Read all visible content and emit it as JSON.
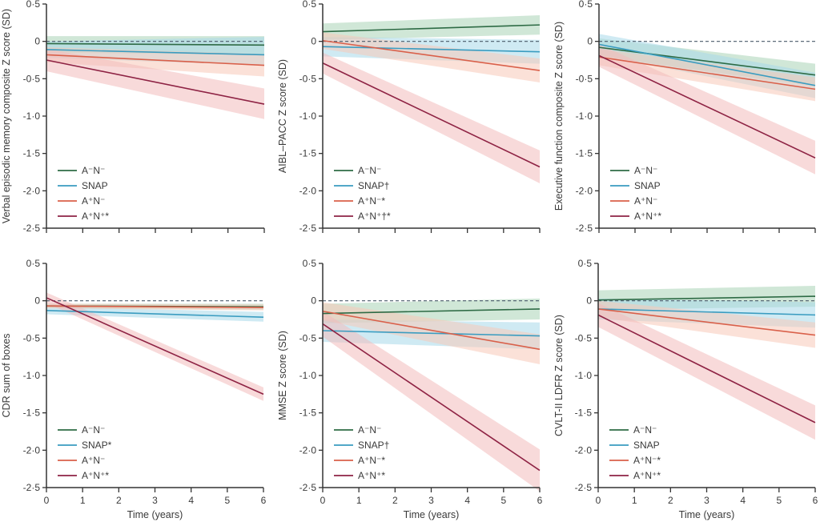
{
  "colors": {
    "AnegNneg": "#2e6b45",
    "SNAP": "#3a9cc0",
    "AposNneg": "#d9604a",
    "AposNpos": "#8e2344",
    "band_AnegNneg": "#a9d3b6",
    "band_SNAP": "#a8d8ea",
    "band_AposNneg": "#f8c9b8",
    "band_AposNpos": "#f3bcbc",
    "axis": "#333333",
    "reference_line": "#4a5a6a"
  },
  "chart_data": [
    {
      "type": "line",
      "title": "",
      "ylabel": "Verbal episodic memory composite Z score (SD)",
      "xlabel": "",
      "xlim": [
        0,
        6
      ],
      "ylim": [
        -2.5,
        0.5
      ],
      "x_ticks": [
        "0",
        "1",
        "2",
        "3",
        "4",
        "5",
        "6"
      ],
      "show_x_tick_labels": false,
      "y_ticks": [
        "0·5",
        "0",
        "-0·5",
        "-1·0",
        "-1·5",
        "-2·0",
        "-2·5"
      ],
      "reference_line": 0,
      "legend_position": "bottom-left",
      "series": [
        {
          "name": "A⁻N⁻",
          "key": "AnegNneg",
          "x": [
            0,
            6
          ],
          "y": [
            -0.03,
            -0.05
          ],
          "ci_lower": [
            -0.15,
            -0.18
          ],
          "ci_upper": [
            0.07,
            0.07
          ]
        },
        {
          "name": "SNAP",
          "key": "SNAP",
          "x": [
            0,
            6
          ],
          "y": [
            -0.11,
            -0.18
          ],
          "ci_lower": [
            -0.22,
            -0.32
          ],
          "ci_upper": [
            0.0,
            0.06
          ]
        },
        {
          "name": "A⁺N⁻",
          "key": "AposNneg",
          "x": [
            0,
            6
          ],
          "y": [
            -0.18,
            -0.32
          ],
          "ci_lower": [
            -0.28,
            -0.47
          ],
          "ci_upper": [
            -0.08,
            -0.17
          ]
        },
        {
          "name": "A⁺N⁺*",
          "key": "AposNpos",
          "x": [
            0,
            6
          ],
          "y": [
            -0.25,
            -0.84
          ],
          "ci_lower": [
            -0.4,
            -1.04
          ],
          "ci_upper": [
            -0.1,
            -0.63
          ]
        }
      ]
    },
    {
      "type": "line",
      "title": "",
      "ylabel": "AIBL–PACC Z score (SD)",
      "xlabel": "",
      "xlim": [
        0,
        6
      ],
      "ylim": [
        -2.5,
        0.5
      ],
      "x_ticks": [
        "0",
        "1",
        "2",
        "3",
        "4",
        "5",
        "6"
      ],
      "show_x_tick_labels": false,
      "y_ticks": [
        "0·5",
        "0",
        "-0·5",
        "-1·0",
        "-1·5",
        "-2·0",
        "-2·5"
      ],
      "reference_line": 0,
      "legend_position": "bottom-left",
      "series": [
        {
          "name": "A⁻N⁻",
          "key": "AnegNneg",
          "x": [
            0,
            6
          ],
          "y": [
            0.13,
            0.22
          ],
          "ci_lower": [
            0.02,
            0.09
          ],
          "ci_upper": [
            0.24,
            0.35
          ]
        },
        {
          "name": "SNAP†",
          "key": "SNAP",
          "x": [
            0,
            6
          ],
          "y": [
            -0.07,
            -0.14
          ],
          "ci_lower": [
            -0.2,
            -0.3
          ],
          "ci_upper": [
            0.06,
            0.02
          ]
        },
        {
          "name": "A⁺N⁻*",
          "key": "AposNneg",
          "x": [
            0,
            6
          ],
          "y": [
            0.01,
            -0.39
          ],
          "ci_lower": [
            -0.1,
            -0.55
          ],
          "ci_upper": [
            0.12,
            -0.23
          ]
        },
        {
          "name": "A⁺N⁺†*",
          "key": "AposNpos",
          "x": [
            0,
            6
          ],
          "y": [
            -0.29,
            -1.68
          ],
          "ci_lower": [
            -0.43,
            -1.9
          ],
          "ci_upper": [
            -0.15,
            -1.46
          ]
        }
      ]
    },
    {
      "type": "line",
      "title": "",
      "ylabel": "Executive function composite Z score (SD)",
      "xlabel": "",
      "xlim": [
        0,
        6
      ],
      "ylim": [
        -2.5,
        0.5
      ],
      "x_ticks": [
        "0",
        "1",
        "2",
        "3",
        "4",
        "5",
        "6"
      ],
      "show_x_tick_labels": false,
      "y_ticks": [
        "0·5",
        "0",
        "-0·5",
        "-1·0",
        "-1·5",
        "-2·0",
        "-2·5"
      ],
      "reference_line": 0,
      "legend_position": "bottom-left",
      "series": [
        {
          "name": "A⁻N⁻",
          "key": "AnegNneg",
          "x": [
            0,
            6
          ],
          "y": [
            -0.08,
            -0.45
          ],
          "ci_lower": [
            -0.2,
            -0.6
          ],
          "ci_upper": [
            0.04,
            -0.3
          ]
        },
        {
          "name": "SNAP",
          "key": "SNAP",
          "x": [
            0,
            6
          ],
          "y": [
            -0.04,
            -0.59
          ],
          "ci_lower": [
            -0.18,
            -0.76
          ],
          "ci_upper": [
            0.1,
            -0.42
          ]
        },
        {
          "name": "A⁺N⁻",
          "key": "AposNneg",
          "x": [
            0,
            6
          ],
          "y": [
            -0.21,
            -0.64
          ],
          "ci_lower": [
            -0.32,
            -0.8
          ],
          "ci_upper": [
            -0.1,
            -0.48
          ]
        },
        {
          "name": "A⁺N⁺*",
          "key": "AposNpos",
          "x": [
            0,
            6
          ],
          "y": [
            -0.19,
            -1.56
          ],
          "ci_lower": [
            -0.34,
            -1.78
          ],
          "ci_upper": [
            -0.04,
            -1.33
          ]
        }
      ]
    },
    {
      "type": "line",
      "title": "",
      "ylabel": "CDR sum of boxes",
      "xlabel": "Time (years)",
      "xlim": [
        0,
        6
      ],
      "ylim": [
        -2.5,
        0.5
      ],
      "x_ticks": [
        "0",
        "1",
        "2",
        "3",
        "4",
        "5",
        "6"
      ],
      "show_x_tick_labels": true,
      "y_ticks": [
        "0·5",
        "0",
        "-0·5",
        "-1·0",
        "-1·5",
        "-2·0",
        "-2·5"
      ],
      "reference_line": 0,
      "legend_position": "bottom-left",
      "series": [
        {
          "name": "A⁻N⁻",
          "key": "AnegNneg",
          "x": [
            0,
            6
          ],
          "y": [
            -0.07,
            -0.08
          ],
          "ci_lower": [
            -0.1,
            -0.12
          ],
          "ci_upper": [
            -0.04,
            -0.04
          ]
        },
        {
          "name": "SNAP*",
          "key": "SNAP",
          "x": [
            0,
            6
          ],
          "y": [
            -0.13,
            -0.22
          ],
          "ci_lower": [
            -0.18,
            -0.28
          ],
          "ci_upper": [
            -0.08,
            -0.15
          ]
        },
        {
          "name": "A⁺N⁻",
          "key": "AposNneg",
          "x": [
            0,
            6
          ],
          "y": [
            -0.07,
            -0.09
          ],
          "ci_lower": [
            -0.1,
            -0.13
          ],
          "ci_upper": [
            -0.04,
            -0.05
          ]
        },
        {
          "name": "A⁺N⁺*",
          "key": "AposNpos",
          "x": [
            0,
            6
          ],
          "y": [
            0.04,
            -1.25
          ],
          "ci_lower": [
            -0.03,
            -1.34
          ],
          "ci_upper": [
            0.11,
            -1.16
          ]
        }
      ]
    },
    {
      "type": "line",
      "title": "",
      "ylabel": "MMSE Z score (SD)",
      "xlabel": "Time (years)",
      "xlim": [
        0,
        6
      ],
      "ylim": [
        -2.5,
        0.5
      ],
      "x_ticks": [
        "0",
        "1",
        "2",
        "3",
        "4",
        "5",
        "6"
      ],
      "show_x_tick_labels": true,
      "y_ticks": [
        "0·5",
        "0",
        "-0·5",
        "-1·0",
        "-1·5",
        "-2·0",
        "-2·5"
      ],
      "reference_line": 0,
      "legend_position": "bottom-left",
      "series": [
        {
          "name": "A⁻N⁻",
          "key": "AnegNneg",
          "x": [
            0,
            6
          ],
          "y": [
            -0.17,
            -0.11
          ],
          "ci_lower": [
            -0.3,
            -0.25
          ],
          "ci_upper": [
            -0.04,
            0.03
          ]
        },
        {
          "name": "SNAP†",
          "key": "SNAP",
          "x": [
            0,
            6
          ],
          "y": [
            -0.4,
            -0.47
          ],
          "ci_lower": [
            -0.55,
            -0.65
          ],
          "ci_upper": [
            -0.25,
            -0.29
          ]
        },
        {
          "name": "A⁺N⁻*",
          "key": "AposNneg",
          "x": [
            0,
            6
          ],
          "y": [
            -0.14,
            -0.65
          ],
          "ci_lower": [
            -0.26,
            -0.85
          ],
          "ci_upper": [
            -0.02,
            -0.45
          ]
        },
        {
          "name": "A⁺N⁺*",
          "key": "AposNpos",
          "x": [
            0,
            6
          ],
          "y": [
            -0.31,
            -2.27
          ],
          "ci_lower": [
            -0.48,
            -2.55
          ],
          "ci_upper": [
            -0.14,
            -1.99
          ]
        }
      ]
    },
    {
      "type": "line",
      "title": "",
      "ylabel": "CVLT-II LDFR Z score (SD)",
      "xlabel": "Time (years)",
      "xlim": [
        0,
        6
      ],
      "ylim": [
        -2.5,
        0.5
      ],
      "x_ticks": [
        "0",
        "1",
        "2",
        "3",
        "4",
        "5",
        "6"
      ],
      "show_x_tick_labels": true,
      "y_ticks": [
        "0·5",
        "0",
        "-0·5",
        "-1·0",
        "-1·5",
        "-2·0",
        "-2·5"
      ],
      "reference_line": 0,
      "legend_position": "bottom-left",
      "series": [
        {
          "name": "A⁻N⁻",
          "key": "AnegNneg",
          "x": [
            0,
            6
          ],
          "y": [
            0.01,
            0.06
          ],
          "ci_lower": [
            -0.12,
            -0.08
          ],
          "ci_upper": [
            0.14,
            0.2
          ]
        },
        {
          "name": "SNAP",
          "key": "SNAP",
          "x": [
            0,
            6
          ],
          "y": [
            -0.11,
            -0.19
          ],
          "ci_lower": [
            -0.25,
            -0.36
          ],
          "ci_upper": [
            0.03,
            -0.02
          ]
        },
        {
          "name": "A⁺N⁻*",
          "key": "AposNneg",
          "x": [
            0,
            6
          ],
          "y": [
            -0.11,
            -0.46
          ],
          "ci_lower": [
            -0.22,
            -0.63
          ],
          "ci_upper": [
            0.0,
            -0.29
          ]
        },
        {
          "name": "A⁺N⁺*",
          "key": "AposNpos",
          "x": [
            0,
            6
          ],
          "y": [
            -0.19,
            -1.63
          ],
          "ci_lower": [
            -0.35,
            -1.86
          ],
          "ci_upper": [
            -0.03,
            -1.4
          ]
        }
      ]
    }
  ]
}
